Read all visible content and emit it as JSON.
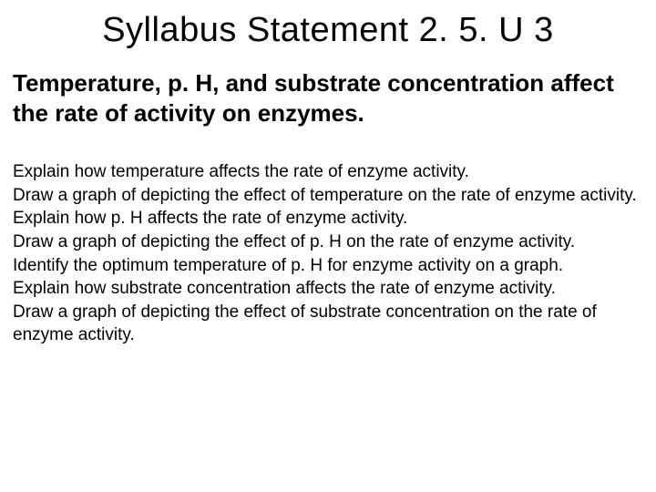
{
  "slide": {
    "title": "Syllabus Statement 2. 5. U 3",
    "statement": "Temperature, p. H, and substrate concentration affect the rate of activity on enzymes.",
    "objectives": [
      "Explain how temperature affects the rate of enzyme activity.",
      "Draw a graph of depicting the effect of temperature on the rate of enzyme activity.",
      "Explain how p. H affects the rate of enzyme activity.",
      "Draw a graph of depicting the effect of p. H on the rate of enzyme activity.",
      "Identify the optimum temperature of p. H for enzyme activity on a graph.",
      "Explain how substrate concentration affects the rate of enzyme activity.",
      "Draw a graph of depicting the effect of substrate concentration on the rate of enzyme activity."
    ]
  },
  "style": {
    "background_color": "#ffffff",
    "text_color": "#000000",
    "title_fontsize": 38,
    "title_weight": 400,
    "statement_fontsize": 26,
    "statement_weight": 700,
    "body_fontsize": 19,
    "body_weight": 400,
    "font_family": "Arial"
  }
}
